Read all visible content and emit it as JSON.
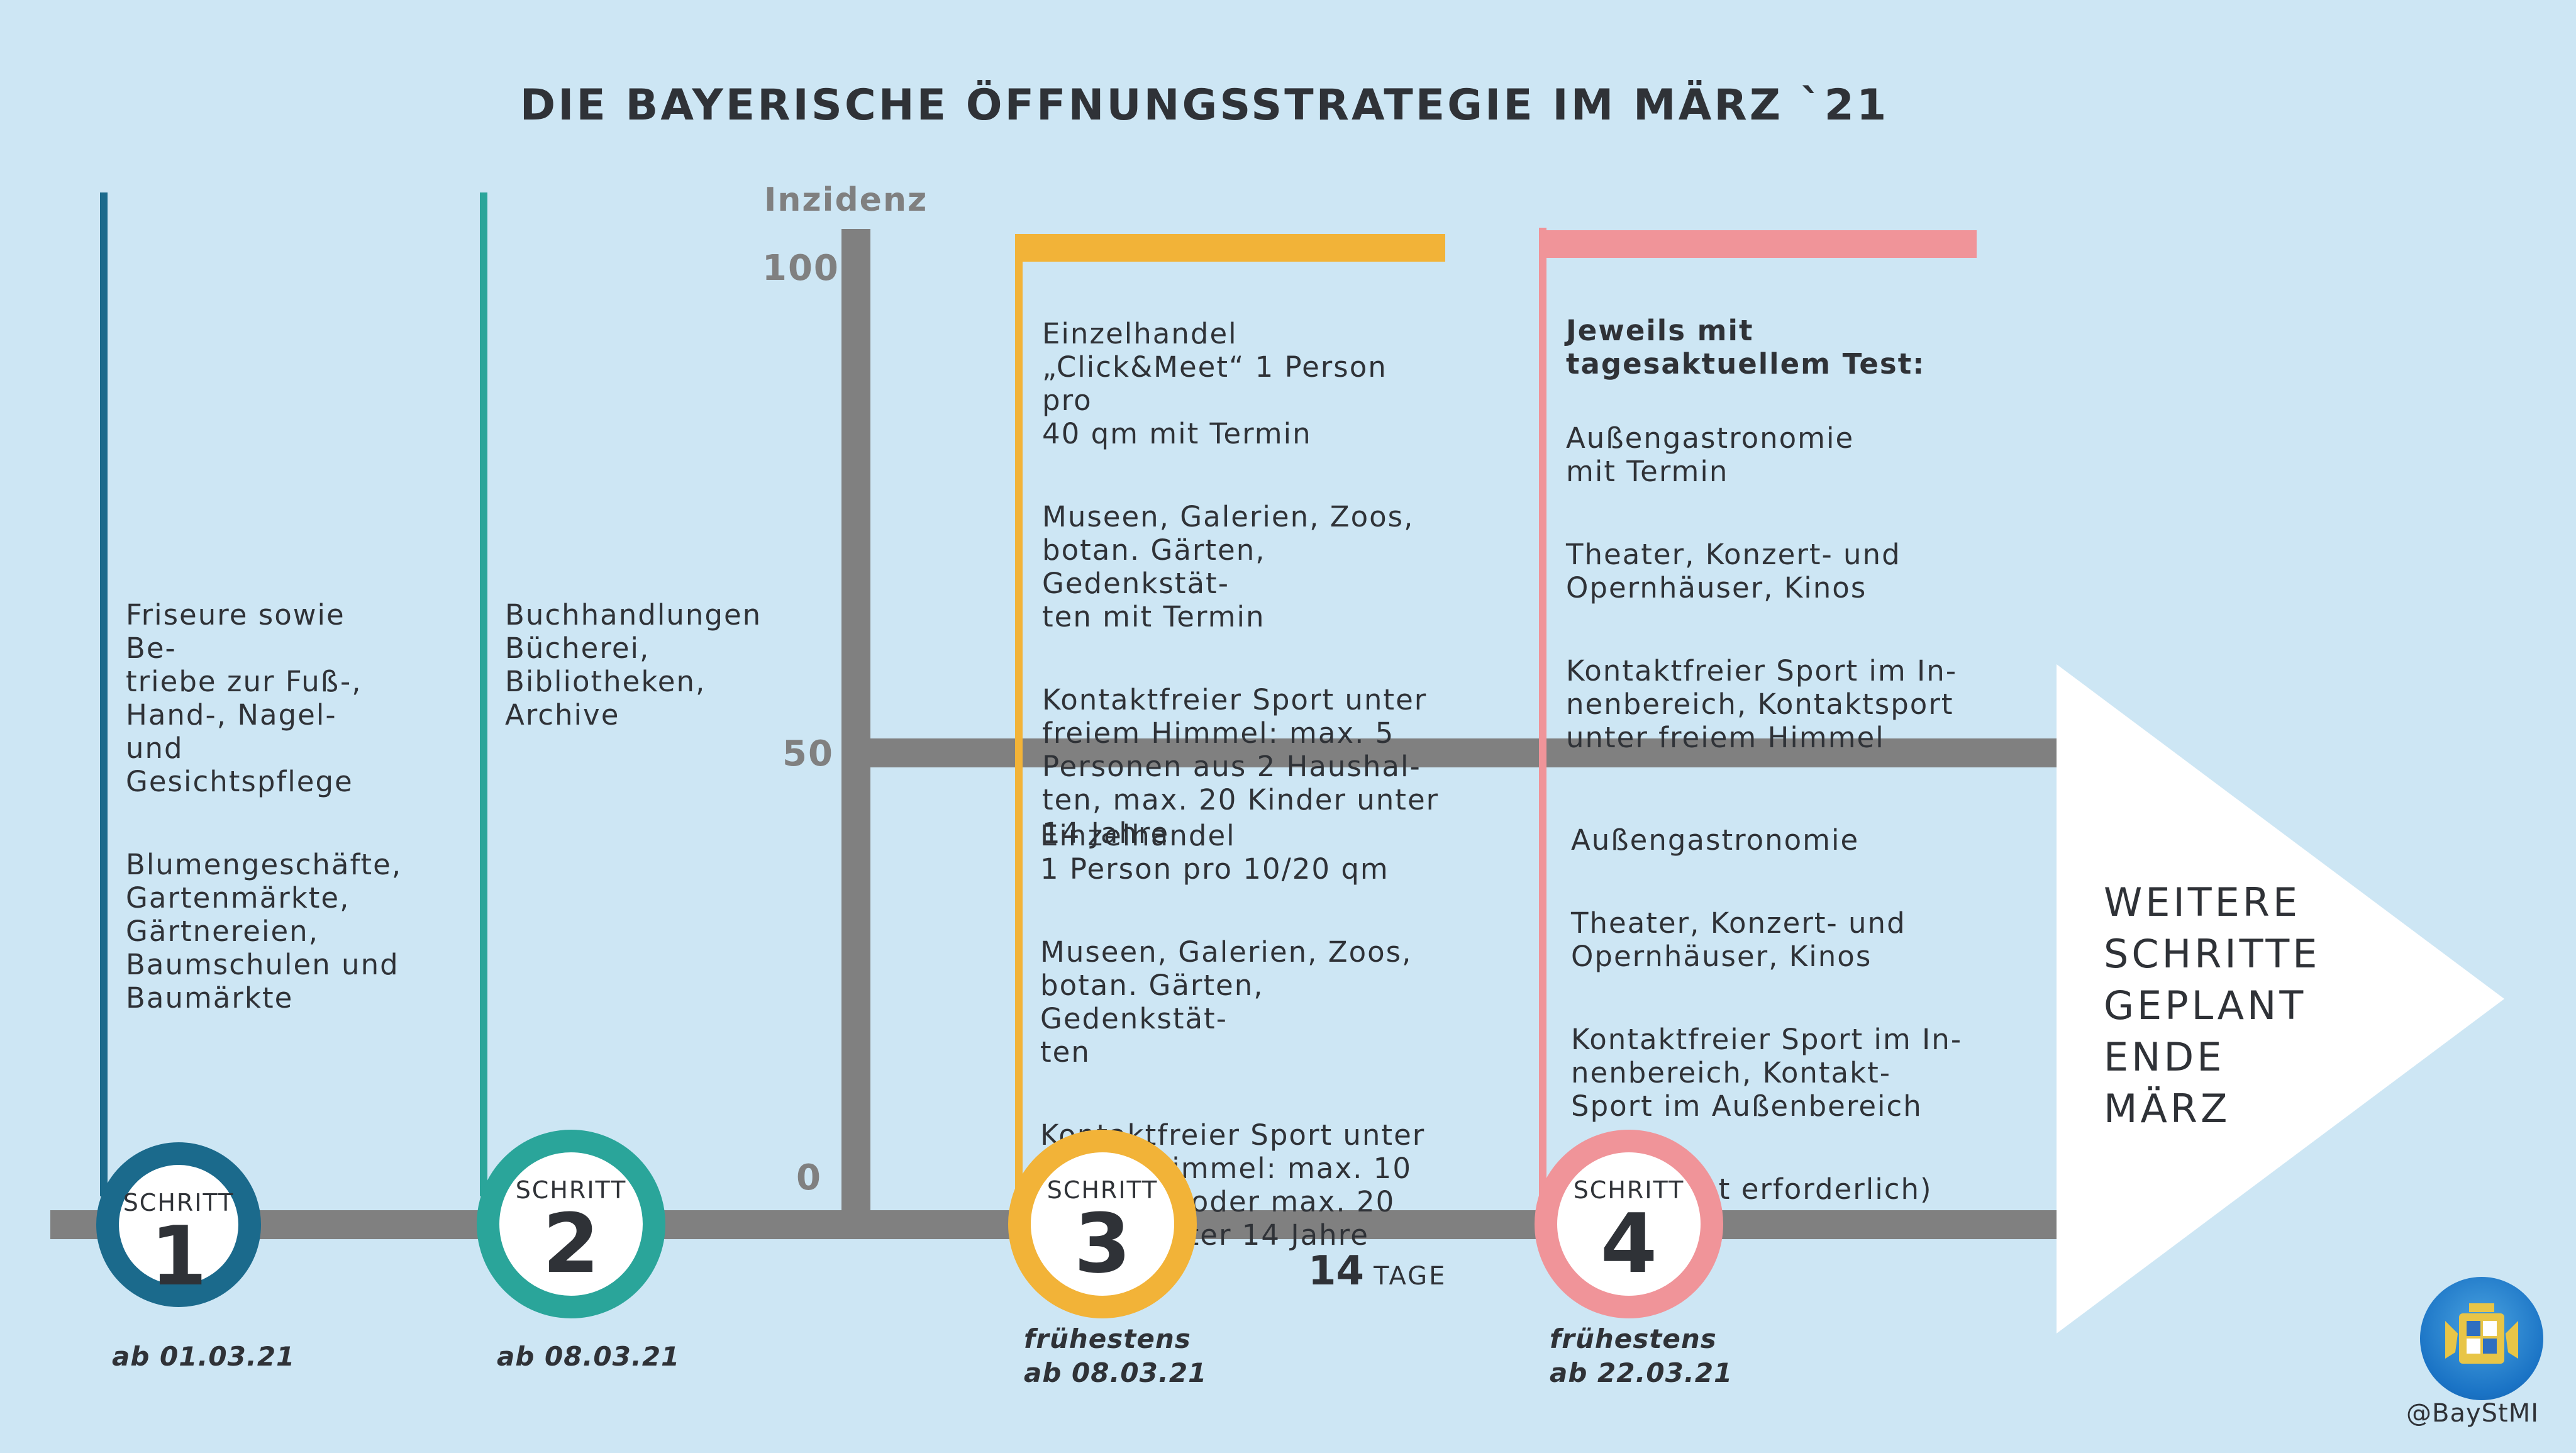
{
  "title": "DIE BAYERISCHE ÖFFNUNGSSTRATEGIE IM MÄRZ `21",
  "axis": {
    "label": "Inzidenz",
    "ticks": [
      "100",
      "50",
      "0"
    ]
  },
  "colors": {
    "background": "#cde6f4",
    "step1": "#1b6a8c",
    "step2": "#2aa59a",
    "step3": "#f2b338",
    "step4": "#f09499",
    "axis": "#808080"
  },
  "steps": [
    {
      "label": "SCHRITT",
      "number": "1",
      "date": "ab 01.03.21",
      "items": [
        "Friseure sowie Be-\ntriebe zur Fuß-,\nHand-, Nagel- und\nGesichtspflege",
        "Blumengeschäfte,\nGartenmärkte,\nGärtnereien,\nBaumschulen und\nBaumärkte"
      ]
    },
    {
      "label": "SCHRITT",
      "number": "2",
      "date": "ab 08.03.21",
      "items": [
        "Buchhandlungen\nBücherei,\nBibliotheken,\nArchive"
      ]
    },
    {
      "label": "SCHRITT",
      "number": "3",
      "date_prefix": "frühestens",
      "date": "ab 08.03.21",
      "items_50_100": [
        "Einzelhandel\n„Click&Meet“ 1 Person pro\n40 qm mit Termin",
        "Museen, Galerien, Zoos,\nbotan. Gärten, Gedenkstät-\nten mit Termin",
        "Kontaktfreier Sport unter\nfreiem Himmel: max. 5\nPersonen aus 2 Haushal-\nten,  max. 20 Kinder unter\n14 Jahre"
      ],
      "items_0_50": [
        "Einzelhandel\n1 Person pro 10/20 qm",
        "Museen, Galerien, Zoos,\nbotan. Gärten, Gedenkstät-\nten",
        "Kontaktfreier Sport unter\nfreiem Himmel: max. 10\nPersonen oder max. 20\nKinder unter 14 Jahre"
      ]
    },
    {
      "label": "SCHRITT",
      "number": "4",
      "date_prefix": "frühestens",
      "date": "ab 22.03.21",
      "heading_50_100": "Jeweils mit\ntagesaktuellem Test:",
      "items_50_100": [
        "Außengastronomie\nmit Termin",
        "Theater, Konzert- und\nOpernhäuser, Kinos",
        "Kontaktfreier Sport im In-\nnenbereich, Kontaktsport\nunter freiem Himmel"
      ],
      "items_0_50": [
        "Außengastronomie",
        "Theater, Konzert- und\nOpernhäuser, Kinos",
        "Kontaktfreier Sport im In-\nnenbereich, Kontakt-\nSport im Außenbereich",
        "(Test nicht erforderlich)"
      ]
    }
  ],
  "interval": {
    "number": "14",
    "unit": "TAGE"
  },
  "outlook": "WEITERE\nSCHRITTE\nGEPLANT\nENDE\nMÄRZ",
  "handle": "@BayStMI",
  "logo_icon": "bavarian-coat-of-arms-icon"
}
